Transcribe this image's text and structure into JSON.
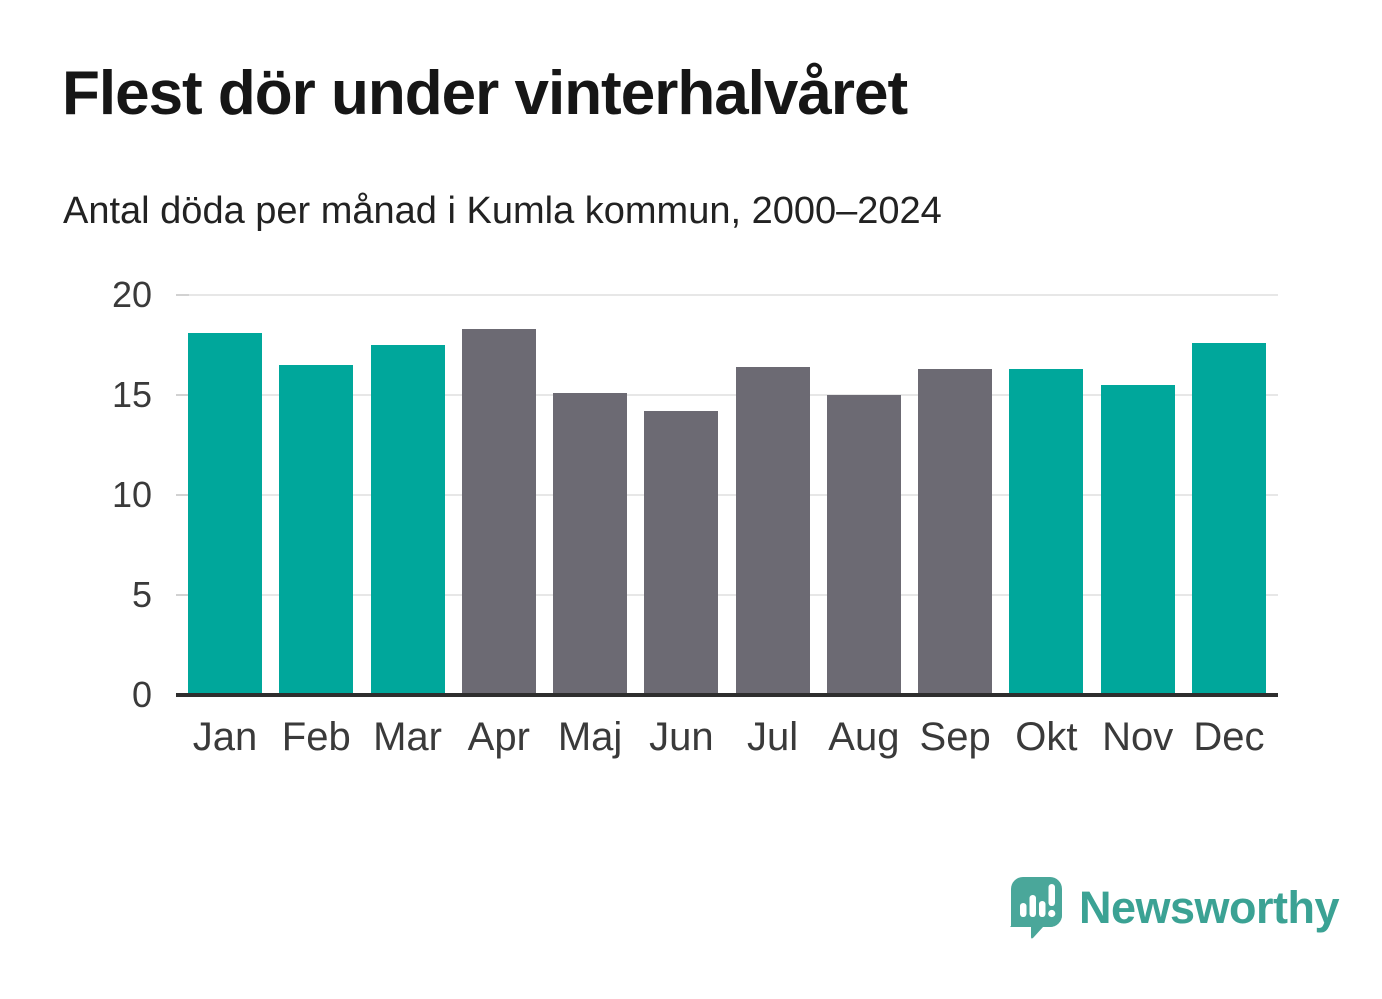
{
  "header": {
    "title": "Flest dör under vinterhalvåret",
    "subtitle": "Antal döda per månad i Kumla kommun, 2000–2024"
  },
  "chart_data": {
    "type": "bar",
    "title": "Flest dör under vinterhalvåret",
    "subtitle": "Antal döda per månad i Kumla kommun, 2000–2024",
    "categories": [
      "Jan",
      "Feb",
      "Mar",
      "Apr",
      "Maj",
      "Jun",
      "Jul",
      "Aug",
      "Sep",
      "Okt",
      "Nov",
      "Dec"
    ],
    "values": [
      18.1,
      16.5,
      17.5,
      18.3,
      15.1,
      14.2,
      16.4,
      15.0,
      16.3,
      16.3,
      15.5,
      17.6
    ],
    "groups": [
      "winter",
      "winter",
      "winter",
      "summer",
      "summer",
      "summer",
      "summer",
      "summer",
      "summer",
      "winter",
      "winter",
      "winter"
    ],
    "colors": {
      "winter": "#00a79b",
      "summer": "#6c6a73"
    },
    "xlabel": "",
    "ylabel": "",
    "ylim": [
      0,
      20
    ],
    "yticks": [
      0,
      5,
      10,
      15,
      20
    ],
    "grid": true,
    "legend": "none",
    "grid_color": "#e7e7e7",
    "axis_color": "#2e2e2e",
    "tick_label_color": "#3a3a3a"
  },
  "branding": {
    "logo_text": "Newsworthy",
    "logo_icon": "newsworthy-bubble-chart-icon",
    "logo_text_color": "#3ba294",
    "logo_bubble_color": "#4aa79a"
  }
}
